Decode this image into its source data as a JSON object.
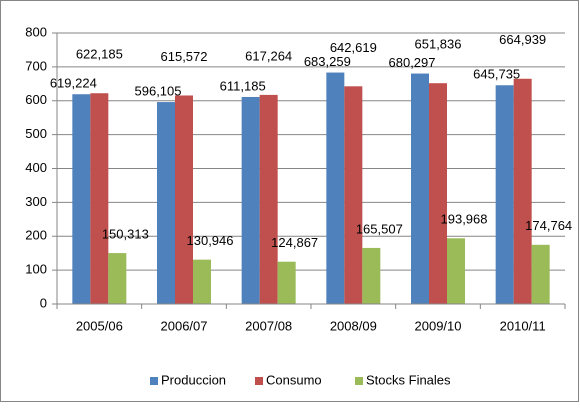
{
  "chart_data": {
    "type": "bar",
    "categories": [
      "2005/06",
      "2006/07",
      "2007/08",
      "2008/09",
      "2009/10",
      "2010/11"
    ],
    "series": [
      {
        "name": "Produccion",
        "color": "#4f81bd",
        "values": [
          619.224,
          596.105,
          611.185,
          683.259,
          680.297,
          645.735
        ],
        "value_labels": [
          "619,224",
          "596,105",
          "611,185",
          "683,259",
          "680,297",
          "645,735"
        ]
      },
      {
        "name": "Consumo",
        "color": "#c0504d",
        "values": [
          622.185,
          615.572,
          617.264,
          642.619,
          651.836,
          664.939
        ],
        "value_labels": [
          "622,185",
          "615,572",
          "617,264",
          "642,619",
          "651,836",
          "664,939"
        ]
      },
      {
        "name": "Stocks Finales",
        "color": "#9bbb59",
        "values": [
          150.313,
          130.946,
          124.867,
          165.507,
          193.968,
          174.764
        ],
        "value_labels": [
          "150,313",
          "130,946",
          "124,867",
          "165,507",
          "193,968",
          "174,764"
        ]
      }
    ],
    "ylim": [
      0,
      800
    ],
    "yticks": [
      0,
      100,
      200,
      300,
      400,
      500,
      600,
      700,
      800
    ],
    "grid": true,
    "legend": "bottom"
  }
}
